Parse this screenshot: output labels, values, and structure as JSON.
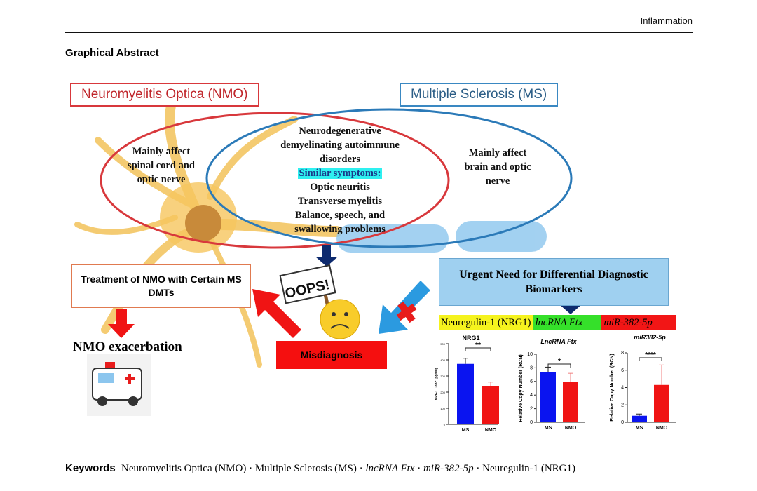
{
  "header": {
    "journal": "Inflammation"
  },
  "section": {
    "title": "Graphical Abstract"
  },
  "figure": {
    "nmo_title": "Neuromyelitis Optica (NMO)",
    "ms_title": "Multiple Sclerosis (MS)",
    "nmo_text": [
      "Mainly affect",
      "spinal cord and",
      "optic nerve"
    ],
    "ms_text": [
      "Mainly affect",
      "brain and optic",
      "nerve"
    ],
    "shared_text": [
      "Neurodegenerative",
      "demyelinating autoimmune",
      "disorders"
    ],
    "similar_label": "Similar symptoms:",
    "symptoms": [
      "Optic neuritis",
      "Transverse myelitis",
      "Balance, speech, and",
      "swallowing  problems"
    ],
    "sign": "OOPS!",
    "urgent": "Urgent Need for Differential Diagnostic Biomarkers",
    "treatment": "Treatment of NMO with Certain MS DMTs",
    "exacerbation": "NMO exacerbation",
    "misdiagnosis": "Misdiagnosis",
    "genes": [
      {
        "label": "Neuregulin-1 (NRG1)",
        "color": "#f5f31e"
      },
      {
        "label": "lncRNA Ftx",
        "color": "#35e02a"
      },
      {
        "label": "miR-382-5p",
        "color": "#f21616"
      }
    ],
    "colors": {
      "nmo": "#d8383c",
      "ms": "#2b7ab8",
      "ms_bar": "#0a14f0",
      "nmo_bar": "#f01414"
    }
  },
  "chart_data": [
    {
      "type": "bar",
      "title": "NRG1",
      "ylabel": "NRG1 Conc (pg/ml)",
      "categories": [
        "MS",
        "NMO"
      ],
      "values": [
        375,
        235
      ],
      "error_upper": [
        410,
        262
      ],
      "ylim": [
        0,
        500
      ],
      "yticks": [
        0,
        100,
        200,
        300,
        400,
        500
      ],
      "significance": "**"
    },
    {
      "type": "bar",
      "title": "LncRNA Ftx",
      "ylabel": "Relative Copy Number (RCN)",
      "categories": [
        "MS",
        "NMO"
      ],
      "values": [
        7.4,
        5.9
      ],
      "error_upper": [
        8.1,
        7.2
      ],
      "ylim": [
        0,
        10
      ],
      "yticks": [
        0,
        2,
        4,
        6,
        8,
        10
      ],
      "significance": "*"
    },
    {
      "type": "bar",
      "title": "miR382-5p",
      "ylabel": "Relative Copy Number (RCN)",
      "categories": [
        "MS",
        "NMO"
      ],
      "values": [
        0.75,
        4.3
      ],
      "error_upper": [
        0.95,
        6.6
      ],
      "ylim": [
        0,
        8
      ],
      "yticks": [
        0,
        2,
        4,
        6,
        8
      ],
      "significance": "****"
    }
  ],
  "keywords": {
    "label": "Keywords",
    "items": [
      "Neuromyelitis Optica (NMO)",
      "Multiple Sclerosis (MS)",
      "lncRNA Ftx",
      "miR-382-5p",
      "Neuregulin-1 (NRG1)"
    ],
    "sep": " · "
  }
}
